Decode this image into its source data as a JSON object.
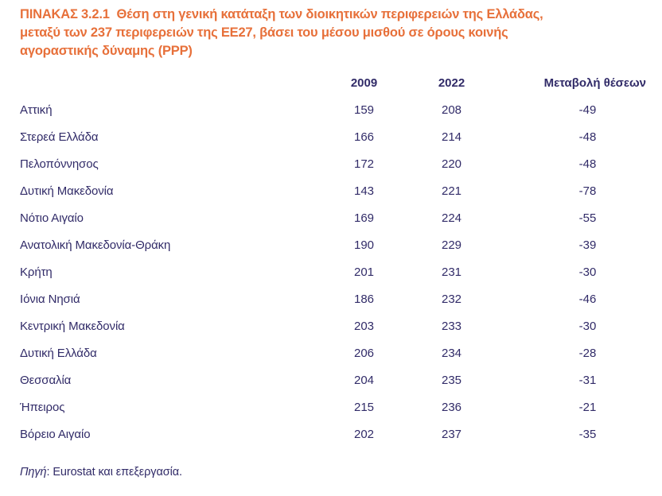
{
  "colors": {
    "title_orange": "#E7703A",
    "text_navy": "#312B68"
  },
  "table": {
    "title_lines": [
      "ΠΙΝΑΚΑΣ 3.2.1  Θέση στη γενική κατάταξη των διοικητικών περιφερειών της Ελλάδας,",
      "μεταξύ των 237 περιφερειών της ΕΕ27, βάσει του μέσου μισθού σε όρους κοινής",
      "αγοραστικής δύναμης (PPP)"
    ],
    "columns": {
      "y2009": "2009",
      "y2022": "2022",
      "change": "Μεταβολή θέσεων"
    },
    "rows": [
      {
        "region": "Αττική",
        "rank_2009": "159",
        "rank_2022": "208",
        "change": "-49"
      },
      {
        "region": "Στερεά Ελλάδα",
        "rank_2009": "166",
        "rank_2022": "214",
        "change": "-48"
      },
      {
        "region": "Πελοπόννησος",
        "rank_2009": "172",
        "rank_2022": "220",
        "change": "-48"
      },
      {
        "region": "Δυτική Μακεδονία",
        "rank_2009": "143",
        "rank_2022": "221",
        "change": "-78"
      },
      {
        "region": "Νότιο Αιγαίο",
        "rank_2009": "169",
        "rank_2022": "224",
        "change": "-55"
      },
      {
        "region": "Ανατολική Μακεδονία-Θράκη",
        "rank_2009": "190",
        "rank_2022": "229",
        "change": "-39"
      },
      {
        "region": "Κρήτη",
        "rank_2009": "201",
        "rank_2022": "231",
        "change": "-30"
      },
      {
        "region": "Ιόνια Νησιά",
        "rank_2009": "186",
        "rank_2022": "232",
        "change": "-46"
      },
      {
        "region": "Κεντρική Μακεδονία",
        "rank_2009": "203",
        "rank_2022": "233",
        "change": "-30"
      },
      {
        "region": "Δυτική Ελλάδα",
        "rank_2009": "206",
        "rank_2022": "234",
        "change": "-28"
      },
      {
        "region": "Θεσσαλία",
        "rank_2009": "204",
        "rank_2022": "235",
        "change": "-31"
      },
      {
        "region": "Ήπειρος",
        "rank_2009": "215",
        "rank_2022": "236",
        "change": "-21"
      },
      {
        "region": "Βόρειο Αιγαίο",
        "rank_2009": "202",
        "rank_2022": "237",
        "change": "-35"
      }
    ]
  },
  "footer": {
    "source_label": "Πηγή",
    "source_text": ": Eurostat και επεξεργασία."
  }
}
